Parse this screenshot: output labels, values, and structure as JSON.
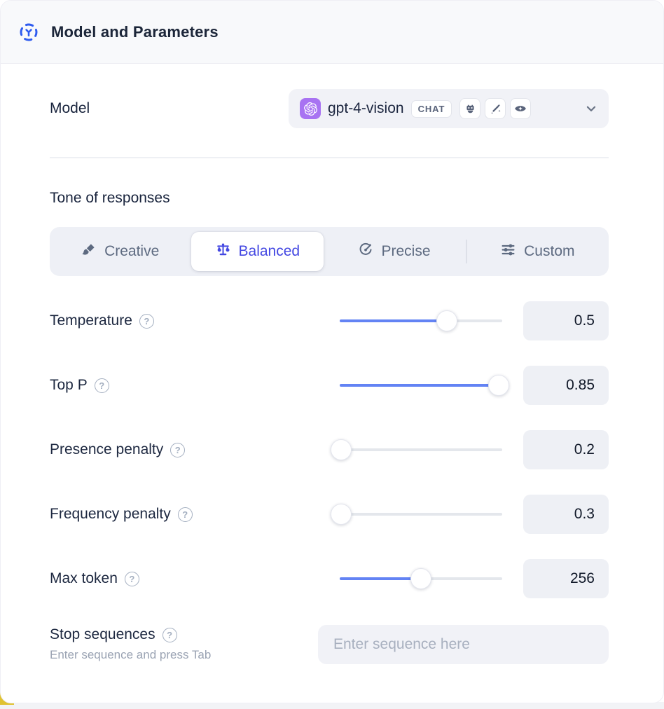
{
  "header": {
    "title": "Model and Parameters",
    "icon": "model-icon"
  },
  "model_row": {
    "label": "Model",
    "selector": {
      "provider_icon": "openai-logo",
      "model_name": "gpt-4-vision",
      "type_badge": "CHAT",
      "capability_icons": [
        "robot-icon",
        "magic-wand-icon",
        "vision-eye-icon"
      ],
      "chevron": "chevron-down-icon"
    }
  },
  "tone": {
    "heading": "Tone of responses",
    "options": [
      {
        "label": "Creative",
        "icon": "paintbrush-icon",
        "selected": false
      },
      {
        "label": "Balanced",
        "icon": "scales-icon",
        "selected": true
      },
      {
        "label": "Precise",
        "icon": "target-arrow-icon",
        "selected": false
      },
      {
        "label": "Custom",
        "icon": "sliders-icon",
        "selected": false
      }
    ]
  },
  "parameters": [
    {
      "label": "Temperature",
      "value": "0.5",
      "slider_percent": 66
    },
    {
      "label": "Top P",
      "value": "0.85",
      "slider_percent": 98
    },
    {
      "label": "Presence penalty",
      "value": "0.2",
      "slider_percent": 1
    },
    {
      "label": "Frequency penalty",
      "value": "0.3",
      "slider_percent": 1
    },
    {
      "label": "Max token",
      "value": "256",
      "slider_percent": 50
    }
  ],
  "stop_sequences": {
    "label": "Stop sequences",
    "hint": "Enter sequence and press Tab",
    "input_placeholder": "Enter sequence here"
  },
  "ui": {
    "help_glyph": "?"
  },
  "colors": {
    "accent_blue": "#2e5bef",
    "active_indigo": "#4347e2",
    "slider_fill": "#6383f4",
    "openai_purple": "#a873f2",
    "yellow_corner": "#e0c232"
  }
}
